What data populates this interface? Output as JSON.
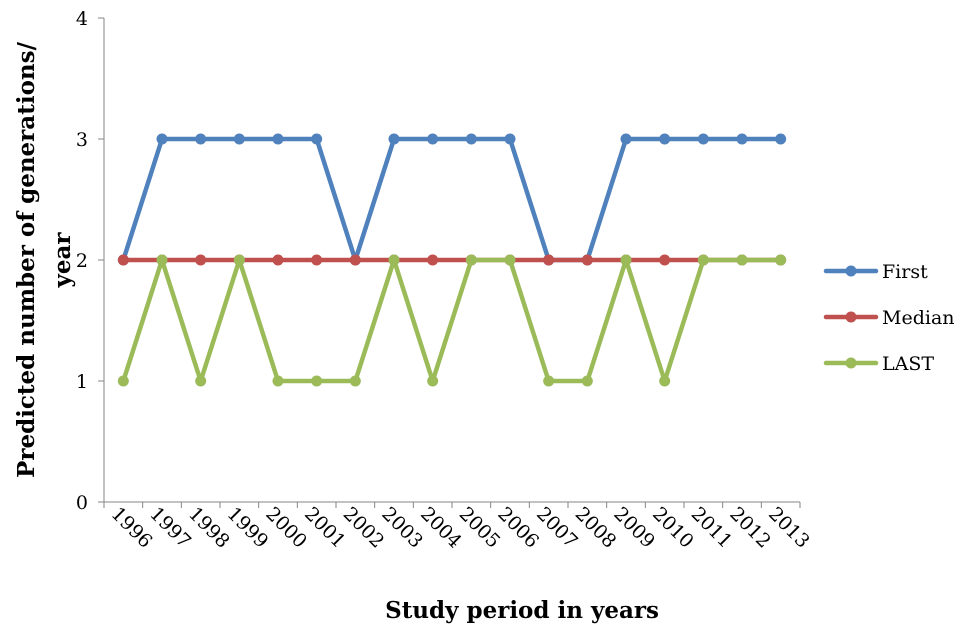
{
  "chart_data": {
    "type": "line",
    "xlabel": "Study period in years",
    "ylabel": "Predicted number of generations/ year",
    "ylim": [
      0,
      4
    ],
    "yticks": [
      "0",
      "1",
      "2",
      "3",
      "4"
    ],
    "categories": [
      "1996",
      "1997",
      "1998",
      "1999",
      "2000",
      "2001",
      "2002",
      "2003",
      "2004",
      "2005",
      "2006",
      "2007",
      "2008",
      "2009",
      "2010",
      "2011",
      "2012",
      "2013"
    ],
    "grid": false,
    "legend_position": "right",
    "series": [
      {
        "name": "First",
        "color": "#4f81bd",
        "values": [
          2,
          3,
          3,
          3,
          3,
          3,
          2,
          3,
          3,
          3,
          3,
          2,
          2,
          3,
          3,
          3,
          3,
          3
        ]
      },
      {
        "name": "Median",
        "color": "#c0504d",
        "values": [
          2,
          2,
          2,
          2,
          2,
          2,
          2,
          2,
          2,
          2,
          2,
          2,
          2,
          2,
          2,
          2,
          2,
          2
        ]
      },
      {
        "name": "LAST",
        "color": "#9bbb59",
        "values": [
          1,
          2,
          1,
          2,
          1,
          1,
          1,
          2,
          1,
          2,
          2,
          1,
          1,
          2,
          1,
          2,
          2,
          2
        ]
      }
    ]
  }
}
